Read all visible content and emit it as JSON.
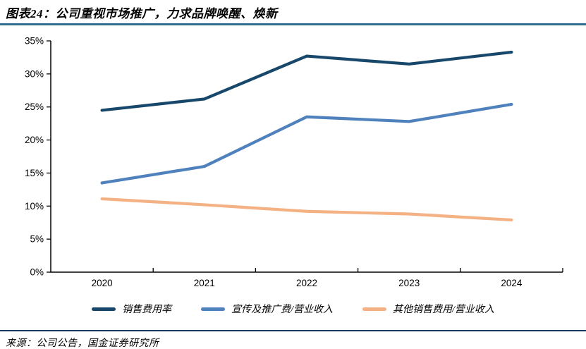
{
  "header": {
    "title": "图表24：公司重视市场推广，力求品牌唤醒、焕新"
  },
  "footer": {
    "source": "来源：公司公告，国金证券研究所"
  },
  "colors": {
    "title_underline": "#2F6C8F",
    "footer_rule": "#17375E",
    "axis": "#000000"
  },
  "chart_data": {
    "type": "line",
    "categories": [
      "2020",
      "2021",
      "2022",
      "2023",
      "2024"
    ],
    "series": [
      {
        "name": "销售费用率",
        "color": "#17486B",
        "values": [
          24.5,
          26.2,
          32.7,
          31.5,
          33.3
        ]
      },
      {
        "name": "宣传及推广费/营业收入",
        "color": "#4F81BD",
        "values": [
          13.5,
          16.0,
          23.5,
          22.8,
          25.4
        ]
      },
      {
        "name": "其他销售费用/营业收入",
        "color": "#F4B183",
        "values": [
          11.1,
          10.2,
          9.2,
          8.8,
          7.9
        ]
      }
    ],
    "ylim": [
      0,
      35
    ],
    "y_tick_step": 5,
    "y_tick_labels": [
      "0%",
      "5%",
      "10%",
      "15%",
      "20%",
      "25%",
      "30%",
      "35%"
    ],
    "xlabel": "",
    "ylabel": "",
    "grid": false,
    "legend_position": "bottom"
  }
}
